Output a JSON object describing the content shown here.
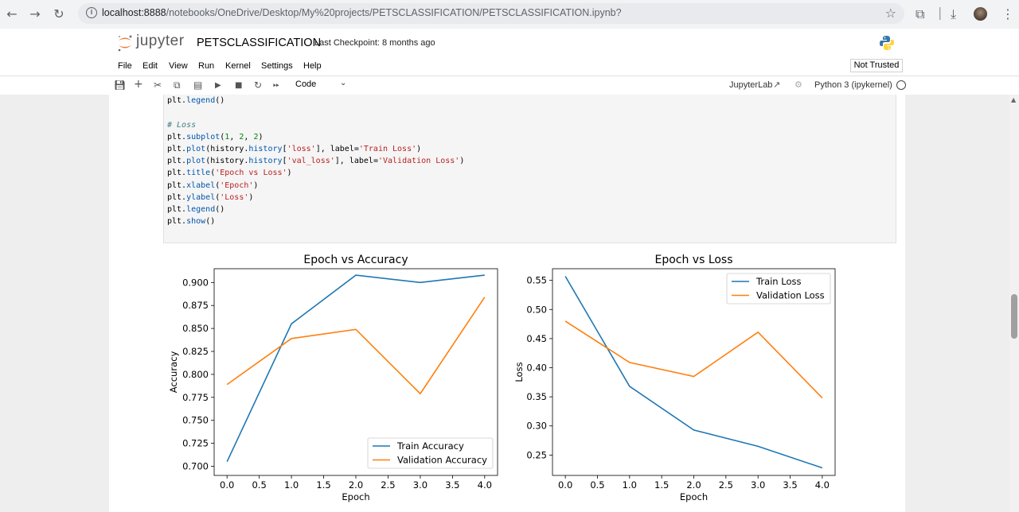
{
  "browser": {
    "url_host": "localhost:8888",
    "url_path": "/notebooks/OneDrive/Desktop/My%20projects/PETSCLASSIFICATION/PETSCLASSIFICATION.ipynb?"
  },
  "header": {
    "logo_text": "jupyter",
    "notebook_title": "PETSCLASSIFICATION",
    "checkpoint": "Last Checkpoint: 8 months ago"
  },
  "menu": {
    "items": [
      "File",
      "Edit",
      "View",
      "Run",
      "Kernel",
      "Settings",
      "Help"
    ],
    "trust_status": "Not Trusted"
  },
  "toolbar": {
    "cell_type": "Code",
    "jupyterlab_label": "JupyterLab",
    "kernel_name": "Python 3 (ipykernel)"
  },
  "code": {
    "lines": [
      "plt.legend()",
      "",
      "# Loss",
      "plt.subplot(1, 2, 2)",
      "plt.plot(history.history['loss'], label='Train Loss')",
      "plt.plot(history.history['val_loss'], label='Validation Loss')",
      "plt.title('Epoch vs Loss')",
      "plt.xlabel('Epoch')",
      "plt.ylabel('Loss')",
      "plt.legend()",
      "plt.show()"
    ]
  },
  "colors": {
    "train": "#1f77b4",
    "validation": "#ff7f0e"
  },
  "chart_data": [
    {
      "type": "line",
      "title": "Epoch vs Accuracy",
      "xlabel": "Epoch",
      "ylabel": "Accuracy",
      "x": [
        0,
        1,
        2,
        3,
        4
      ],
      "xticks": [
        "0.0",
        "0.5",
        "1.0",
        "1.5",
        "2.0",
        "2.5",
        "3.0",
        "3.5",
        "4.0"
      ],
      "yticks": [
        "0.700",
        "0.725",
        "0.750",
        "0.775",
        "0.800",
        "0.825",
        "0.850",
        "0.875",
        "0.900"
      ],
      "xlim": [
        -0.2,
        4.2
      ],
      "ylim": [
        0.69,
        0.915
      ],
      "legend_position": "lower-right",
      "series": [
        {
          "name": "Train Accuracy",
          "values": [
            0.705,
            0.855,
            0.908,
            0.9,
            0.908
          ]
        },
        {
          "name": "Validation Accuracy",
          "values": [
            0.789,
            0.839,
            0.849,
            0.779,
            0.884
          ]
        }
      ]
    },
    {
      "type": "line",
      "title": "Epoch vs Loss",
      "xlabel": "Epoch",
      "ylabel": "Loss",
      "x": [
        0,
        1,
        2,
        3,
        4
      ],
      "xticks": [
        "0.0",
        "0.5",
        "1.0",
        "1.5",
        "2.0",
        "2.5",
        "3.0",
        "3.5",
        "4.0"
      ],
      "yticks": [
        "0.25",
        "0.30",
        "0.35",
        "0.40",
        "0.45",
        "0.50",
        "0.55"
      ],
      "xlim": [
        -0.2,
        4.2
      ],
      "ylim": [
        0.215,
        0.57
      ],
      "legend_position": "upper-right",
      "series": [
        {
          "name": "Train Loss",
          "values": [
            0.557,
            0.368,
            0.293,
            0.265,
            0.228
          ]
        },
        {
          "name": "Validation Loss",
          "values": [
            0.48,
            0.409,
            0.385,
            0.461,
            0.348
          ]
        }
      ]
    }
  ]
}
